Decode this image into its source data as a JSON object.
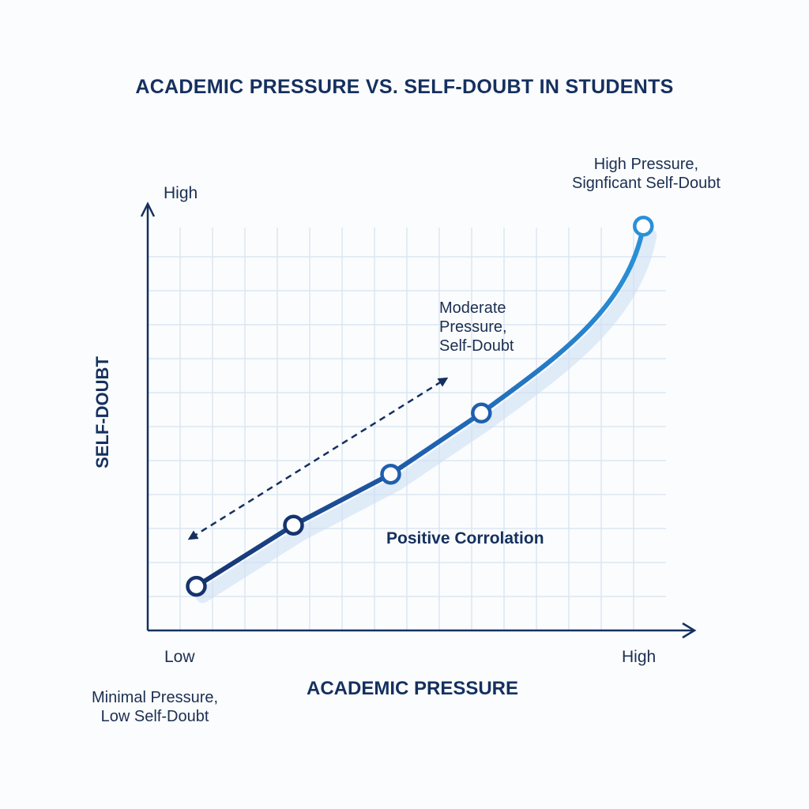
{
  "chart_data": {
    "type": "line",
    "title": "ACADEMIC PRESSURE VS. SELF-DOUBT IN STUDENTS",
    "xlabel": "ACADEMIC PRESSURE",
    "ylabel": "SELF-DOUBT",
    "x_ticks": {
      "low": "Low",
      "high": "High"
    },
    "y_ticks": {
      "high": "High"
    },
    "xlim": [
      0,
      17
    ],
    "ylim": [
      0,
      12.5
    ],
    "grid": true,
    "series": [
      {
        "name": "Self-doubt",
        "x": [
          1.5,
          4.5,
          7.5,
          10.3,
          15.3
        ],
        "y": [
          1.3,
          3.1,
          4.6,
          6.4,
          11.9
        ]
      }
    ],
    "annotations": {
      "low": "Minimal Pressure,\nLow Self-Doubt",
      "low_line1": "Minimal Pressure,",
      "low_line2": "Low Self-Doubt",
      "moderate_line1": "Moderate",
      "moderate_line2": "Pressure,",
      "moderate_line3": "Self-Doubt",
      "high_line1": "High Pressure,",
      "high_line2": "Signficant Self-Doubt",
      "trend": "Positive Corrolation"
    },
    "colors": {
      "dark": "#16336e",
      "light": "#2a90d8",
      "grid": "#dbe6f3",
      "axis": "#15305f"
    }
  }
}
